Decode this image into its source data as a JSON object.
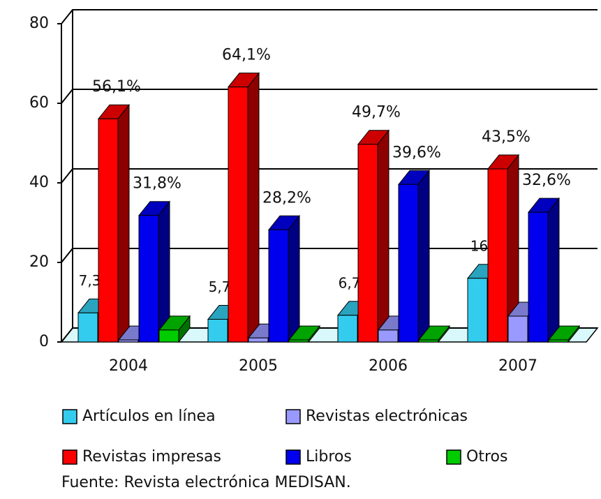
{
  "chart_data": {
    "type": "bar3d",
    "categories": [
      "2004",
      "2005",
      "2006",
      "2007"
    ],
    "series": [
      {
        "name": "Artículos en línea",
        "color": "#33ccee",
        "values": [
          7.3,
          5.7,
          6.7,
          16
        ],
        "value_labels": [
          "7,3%",
          "5,7%",
          "6,7%",
          "16%"
        ]
      },
      {
        "name": "Revistas electrónicas",
        "color": "#9999ff",
        "values": [
          0.5,
          1,
          3,
          6.5
        ]
      },
      {
        "name": "Revistas impresas",
        "color": "#ff0000",
        "values": [
          56.1,
          64.1,
          49.7,
          43.5
        ],
        "value_labels": [
          "56,1%",
          "64,1%",
          "49,7%",
          "43,5%"
        ]
      },
      {
        "name": "Libros",
        "color": "#0000ee",
        "values": [
          31.8,
          28.2,
          39.6,
          32.6
        ],
        "value_labels": [
          "31,8%",
          "28,2%",
          "39,6%",
          "32,6%"
        ]
      },
      {
        "name": "Otros",
        "color": "#00cc00",
        "values": [
          3,
          0.5,
          0.5,
          0.5
        ]
      }
    ],
    "ylim": [
      0,
      80
    ],
    "yticks": [
      0,
      20,
      40,
      60,
      80
    ],
    "grid": true,
    "source": "Fuente: Revista electrónica MEDISAN."
  }
}
